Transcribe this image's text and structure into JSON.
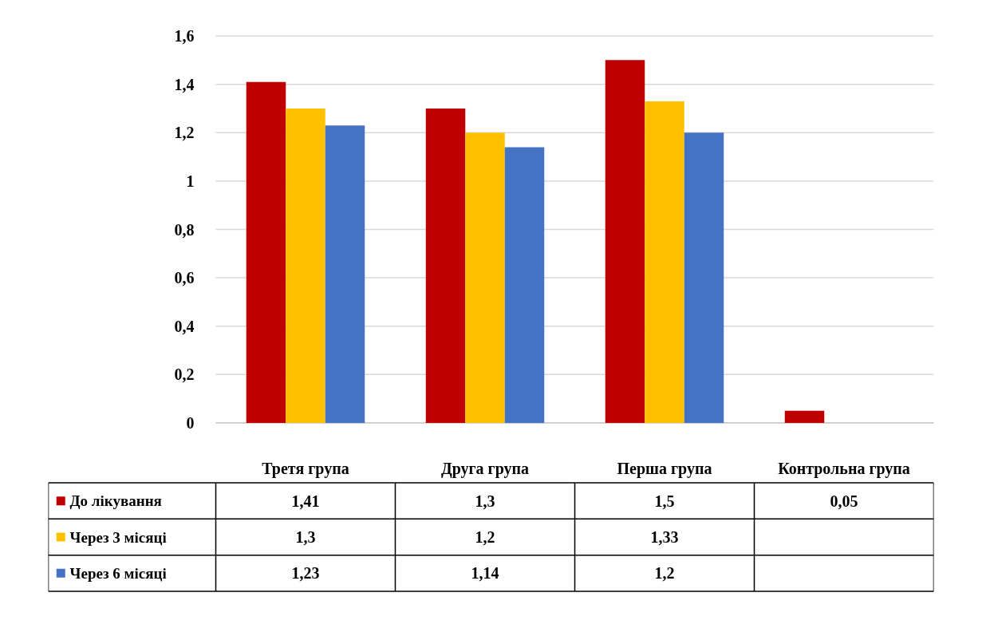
{
  "chart_data": {
    "type": "bar",
    "categories": [
      "Третя група",
      "Друга група",
      "Перша група",
      "Контрольна група"
    ],
    "series": [
      {
        "name": "До лікування",
        "color": "#c00000",
        "values": [
          1.41,
          1.3,
          1.5,
          0.05
        ],
        "value_labels": [
          "1,41",
          "1,3",
          "1,5",
          "0,05"
        ]
      },
      {
        "name": "Через 3 місяці",
        "color": "#ffc000",
        "values": [
          1.3,
          1.2,
          1.33,
          null
        ],
        "value_labels": [
          "1,3",
          "1,2",
          "1,33",
          null
        ]
      },
      {
        "name": "Через 6 місяці",
        "color": "#4472c4",
        "values": [
          1.23,
          1.14,
          1.2,
          null
        ],
        "value_labels": [
          "1,23",
          "1,14",
          "1,2",
          null
        ]
      }
    ],
    "ylim": [
      0,
      1.6
    ],
    "yticks": [
      {
        "value": 0,
        "label": "0"
      },
      {
        "value": 0.2,
        "label": "0,2"
      },
      {
        "value": 0.4,
        "label": "0,4"
      },
      {
        "value": 0.6,
        "label": "0,6"
      },
      {
        "value": 0.8,
        "label": "0,8"
      },
      {
        "value": 1,
        "label": "1"
      },
      {
        "value": 1.2,
        "label": "1,2"
      },
      {
        "value": 1.4,
        "label": "1,4"
      },
      {
        "value": 1.6,
        "label": "1,6"
      }
    ],
    "grid": "y",
    "legend": "bottom"
  }
}
